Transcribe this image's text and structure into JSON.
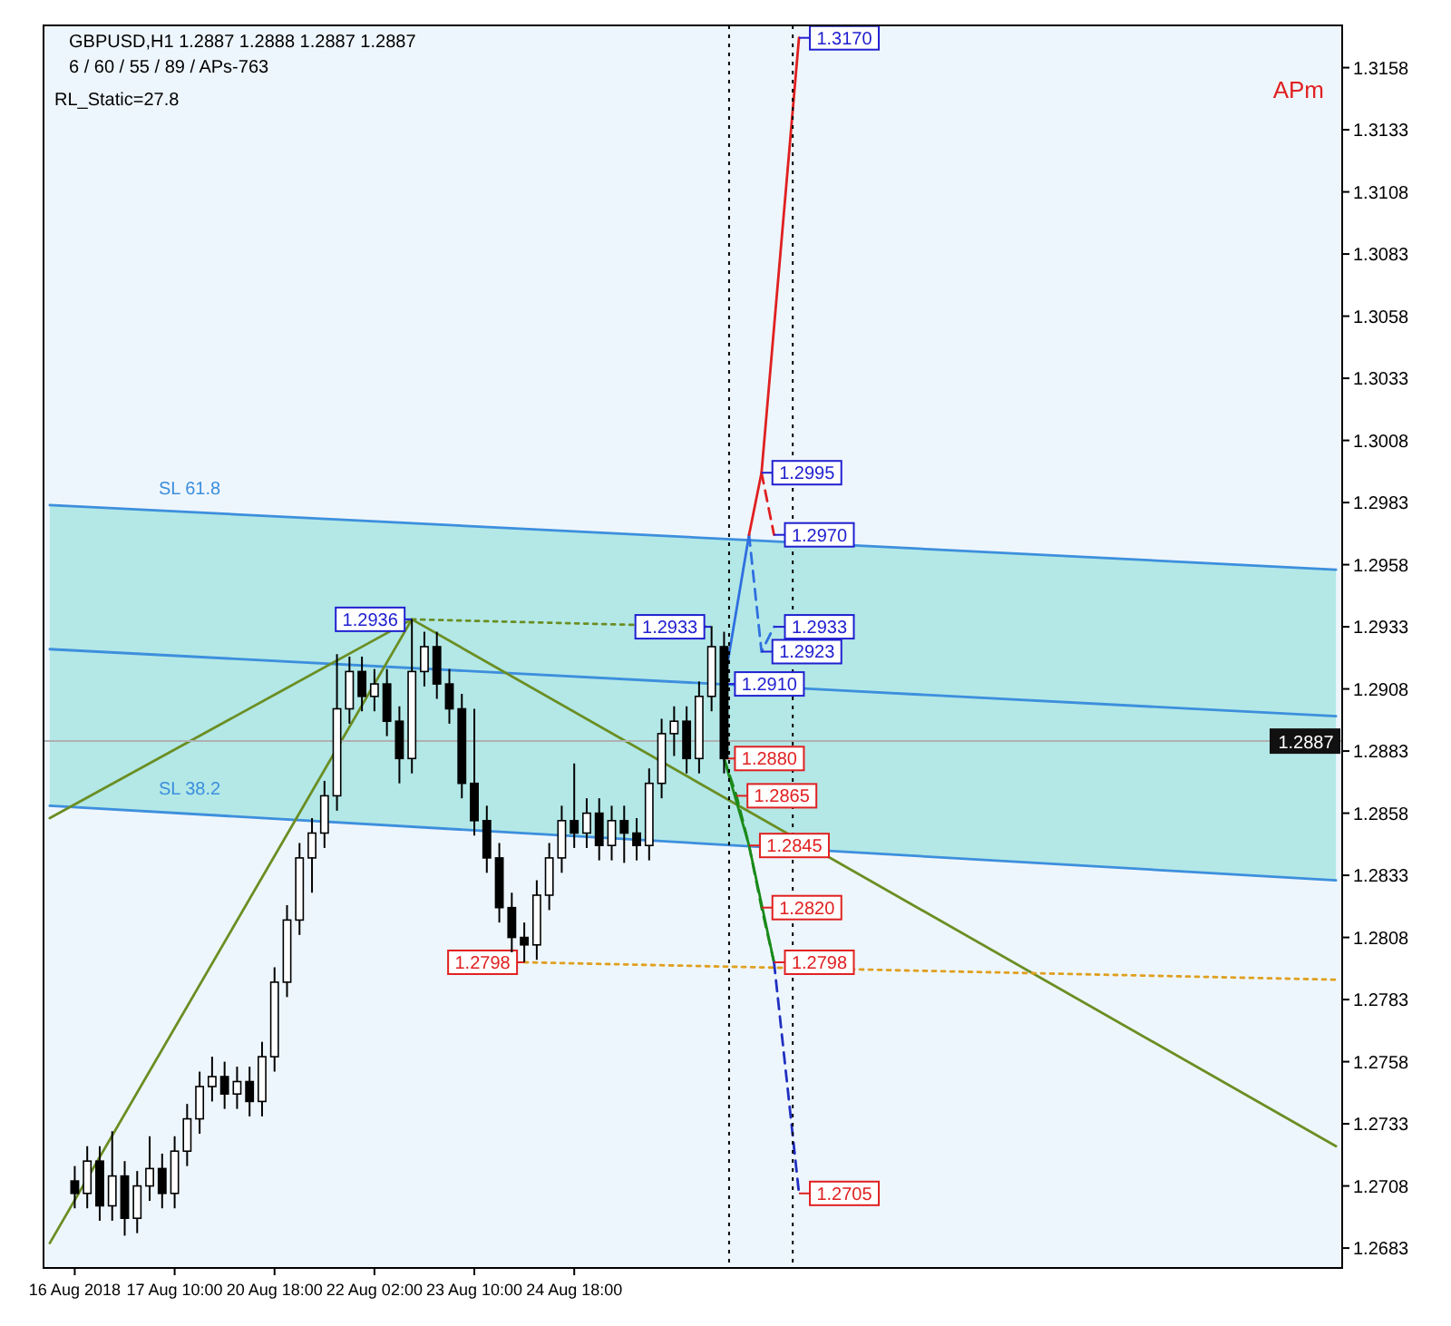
{
  "chart_data": {
    "type": "candlestick",
    "title": "GBPUSD,H1  1.2887 1.2888 1.2887 1.2887",
    "subtitle": "6 / 60 / 55 / 89 / APs-763",
    "categories": [
      null,
      null,
      "16 Aug 2018",
      null,
      null,
      null,
      null,
      null,
      null,
      null,
      "17 Aug 10:00",
      null,
      null,
      null,
      null,
      null,
      null,
      null,
      "20 Aug 18:00",
      null,
      null,
      null,
      null,
      null,
      null,
      null,
      "22 Aug 02:00",
      null,
      null,
      null,
      null,
      null,
      null,
      null,
      "23 Aug 10:00",
      null,
      null,
      null,
      null,
      null,
      null,
      null,
      "24 Aug 18:00",
      null,
      null,
      null,
      null,
      null,
      null,
      null,
      null,
      null,
      null,
      null,
      null,
      null,
      null,
      null,
      null,
      null,
      null,
      null,
      null,
      null,
      null,
      null,
      null,
      null,
      null,
      null,
      null,
      null,
      null,
      null,
      null,
      null,
      null,
      null,
      null,
      null,
      null,
      null,
      null,
      null,
      null,
      null,
      null,
      null,
      null,
      null,
      null,
      null,
      null,
      null,
      null,
      null,
      null,
      null,
      null,
      null,
      null,
      null,
      null,
      null
    ],
    "ohlc": [
      null,
      null,
      [
        1.271,
        1.2716,
        1.2699,
        1.2705
      ],
      [
        1.2705,
        1.2724,
        1.2699,
        1.2718
      ],
      [
        1.2718,
        1.2724,
        1.2694,
        1.27
      ],
      [
        1.27,
        1.273,
        1.2694,
        1.2712
      ],
      [
        1.2712,
        1.2718,
        1.2688,
        1.2695
      ],
      [
        1.2695,
        1.2714,
        1.2689,
        1.2708
      ],
      [
        1.2708,
        1.2728,
        1.2702,
        1.2715
      ],
      [
        1.2715,
        1.2721,
        1.2699,
        1.2705
      ],
      [
        1.2705,
        1.2728,
        1.2699,
        1.2722
      ],
      [
        1.2722,
        1.2741,
        1.2716,
        1.2735
      ],
      [
        1.2735,
        1.2754,
        1.2729,
        1.2748
      ],
      [
        1.2748,
        1.276,
        1.2742,
        1.2752
      ],
      [
        1.2752,
        1.2758,
        1.2739,
        1.2745
      ],
      [
        1.2745,
        1.2756,
        1.2739,
        1.275
      ],
      [
        1.275,
        1.2756,
        1.2736,
        1.2742
      ],
      [
        1.2742,
        1.2766,
        1.2736,
        1.276
      ],
      [
        1.276,
        1.2796,
        1.2754,
        1.279
      ],
      [
        1.279,
        1.2821,
        1.2784,
        1.2815
      ],
      [
        1.2815,
        1.2846,
        1.2809,
        1.284
      ],
      [
        1.284,
        1.2856,
        1.2826,
        1.285
      ],
      [
        1.285,
        1.2871,
        1.2844,
        1.2865
      ],
      [
        1.2865,
        1.2922,
        1.2859,
        1.29
      ],
      [
        1.29,
        1.2921,
        1.2894,
        1.2915
      ],
      [
        1.2915,
        1.2921,
        1.2899,
        1.2905
      ],
      [
        1.2905,
        1.2916,
        1.2899,
        1.291
      ],
      [
        1.291,
        1.2916,
        1.2889,
        1.2895
      ],
      [
        1.2895,
        1.2901,
        1.287,
        1.288
      ],
      [
        1.288,
        1.2936,
        1.2874,
        1.2915
      ],
      [
        1.2915,
        1.2931,
        1.2909,
        1.2925
      ],
      [
        1.2925,
        1.2931,
        1.2904,
        1.291
      ],
      [
        1.291,
        1.2916,
        1.2894,
        1.29
      ],
      [
        1.29,
        1.2906,
        1.2864,
        1.287
      ],
      [
        1.287,
        1.29,
        1.2849,
        1.2855
      ],
      [
        1.2855,
        1.2861,
        1.2834,
        1.284
      ],
      [
        1.284,
        1.2846,
        1.2814,
        1.282
      ],
      [
        1.282,
        1.2826,
        1.2802,
        1.2808
      ],
      [
        1.2808,
        1.2814,
        1.2798,
        1.2805
      ],
      [
        1.2805,
        1.2831,
        1.2799,
        1.2825
      ],
      [
        1.2825,
        1.2846,
        1.2819,
        1.284
      ],
      [
        1.284,
        1.2861,
        1.2834,
        1.2855
      ],
      [
        1.2855,
        1.2878,
        1.2844,
        1.285
      ],
      [
        1.285,
        1.2864,
        1.2844,
        1.2858
      ],
      [
        1.2858,
        1.2864,
        1.2839,
        1.2845
      ],
      [
        1.2845,
        1.2861,
        1.2839,
        1.2855
      ],
      [
        1.2855,
        1.2861,
        1.2838,
        1.285
      ],
      [
        1.285,
        1.2856,
        1.2839,
        1.2845
      ],
      [
        1.2845,
        1.2876,
        1.2839,
        1.287
      ],
      [
        1.287,
        1.2896,
        1.2864,
        1.289
      ],
      [
        1.289,
        1.2901,
        1.2881,
        1.2895
      ],
      [
        1.2895,
        1.2901,
        1.2874,
        1.288
      ],
      [
        1.288,
        1.2911,
        1.2874,
        1.2905
      ],
      [
        1.2905,
        1.2933,
        1.2899,
        1.2925
      ],
      [
        1.2925,
        1.2931,
        1.2874,
        1.288
      ],
      null,
      null,
      null,
      null,
      null,
      null,
      null,
      null,
      null,
      null,
      null,
      null,
      null,
      null,
      null,
      null,
      null,
      null,
      null,
      null,
      null,
      null,
      null,
      null,
      null,
      null,
      null,
      null,
      null,
      null,
      null,
      null,
      null,
      null,
      null,
      null,
      null,
      null,
      null,
      null,
      null,
      null,
      null,
      null,
      null,
      null,
      null,
      null,
      null
    ],
    "series": [
      {
        "type": "line",
        "color": "#3d8fdd",
        "values": [
          1.2924,
          null,
          null,
          null,
          null,
          null,
          null,
          null,
          null,
          null,
          null,
          null,
          null,
          null,
          null,
          null,
          null,
          null,
          null,
          null,
          null,
          null,
          null,
          null,
          null,
          null,
          null,
          null,
          null,
          null,
          null,
          null,
          null,
          null,
          null,
          null,
          null,
          null,
          null,
          null,
          null,
          null,
          null,
          null,
          null,
          null,
          null,
          null,
          null,
          null,
          null,
          null,
          null,
          null,
          null,
          null,
          null,
          null,
          null,
          null,
          null,
          null,
          null,
          null,
          null,
          null,
          null,
          null,
          null,
          null,
          null,
          null,
          null,
          null,
          null,
          null,
          null,
          null,
          null,
          null,
          null,
          null,
          null,
          null,
          null,
          null,
          null,
          null,
          null,
          null,
          null,
          null,
          null,
          null,
          null,
          null,
          null,
          null,
          null,
          null,
          null,
          null,
          null,
          1.2897
        ],
        "lower": [
          1.2861,
          null,
          null,
          null,
          null,
          null,
          null,
          null,
          null,
          null,
          null,
          null,
          null,
          null,
          null,
          null,
          null,
          null,
          null,
          null,
          null,
          null,
          null,
          null,
          null,
          null,
          null,
          null,
          null,
          null,
          null,
          null,
          null,
          null,
          null,
          null,
          null,
          null,
          null,
          null,
          null,
          null,
          null,
          null,
          null,
          null,
          null,
          null,
          null,
          null,
          null,
          null,
          null,
          null,
          null,
          null,
          null,
          null,
          null,
          null,
          null,
          null,
          null,
          null,
          null,
          null,
          null,
          null,
          null,
          null,
          null,
          null,
          null,
          null,
          null,
          null,
          null,
          null,
          null,
          null,
          null,
          null,
          null,
          null,
          null,
          null,
          null,
          null,
          null,
          null,
          null,
          null,
          null,
          null,
          null,
          null,
          null,
          null,
          null,
          null,
          null,
          null,
          null,
          1.2831
        ],
        "upper": [
          1.2982,
          null,
          null,
          null,
          null,
          null,
          null,
          null,
          null,
          null,
          null,
          null,
          null,
          null,
          null,
          null,
          null,
          null,
          null,
          null,
          null,
          null,
          null,
          null,
          null,
          null,
          null,
          null,
          null,
          null,
          null,
          null,
          null,
          null,
          null,
          null,
          null,
          null,
          null,
          null,
          null,
          null,
          null,
          null,
          null,
          null,
          null,
          null,
          null,
          null,
          null,
          null,
          null,
          null,
          null,
          null,
          null,
          null,
          null,
          null,
          null,
          null,
          null,
          null,
          null,
          null,
          null,
          null,
          null,
          null,
          null,
          null,
          null,
          null,
          null,
          null,
          null,
          null,
          null,
          null,
          null,
          null,
          null,
          null,
          null,
          null,
          null,
          null,
          null,
          null,
          null,
          null,
          null,
          null,
          null,
          null,
          null,
          null,
          null,
          null,
          null,
          null,
          null,
          1.2956
        ]
      },
      {
        "type": "line",
        "name": "SL 61.8",
        "color": "#3d8fdd",
        "values": [
          1.2982,
          null,
          null,
          null,
          null,
          null,
          null,
          null,
          null,
          null,
          null,
          null,
          null,
          null,
          null,
          null,
          null,
          null,
          null,
          null,
          null,
          null,
          null,
          null,
          null,
          null,
          null,
          null,
          null,
          null,
          null,
          null,
          null,
          null,
          null,
          null,
          null,
          null,
          null,
          null,
          null,
          null,
          null,
          null,
          null,
          null,
          null,
          null,
          null,
          null,
          null,
          null,
          null,
          null,
          null,
          null,
          null,
          null,
          null,
          null,
          null,
          null,
          null,
          null,
          null,
          null,
          null,
          null,
          null,
          null,
          null,
          null,
          null,
          null,
          null,
          null,
          null,
          null,
          null,
          null,
          null,
          null,
          null,
          null,
          null,
          null,
          null,
          null,
          null,
          null,
          null,
          null,
          null,
          null,
          null,
          null,
          null,
          null,
          null,
          null,
          null,
          null,
          null,
          1.2956
        ]
      },
      {
        "type": "line",
        "name": "SL 38.2",
        "color": "#3d8fdd",
        "values": [
          1.2861,
          null,
          null,
          null,
          null,
          null,
          null,
          null,
          null,
          null,
          null,
          null,
          null,
          null,
          null,
          null,
          null,
          null,
          null,
          null,
          null,
          null,
          null,
          null,
          null,
          null,
          null,
          null,
          null,
          null,
          null,
          null,
          null,
          null,
          null,
          null,
          null,
          null,
          null,
          null,
          null,
          null,
          null,
          null,
          null,
          null,
          null,
          null,
          null,
          null,
          null,
          null,
          null,
          null,
          null,
          null,
          null,
          null,
          null,
          null,
          null,
          null,
          null,
          null,
          null,
          null,
          null,
          null,
          null,
          null,
          null,
          null,
          null,
          null,
          null,
          null,
          null,
          null,
          null,
          null,
          null,
          null,
          null,
          null,
          null,
          null,
          null,
          null,
          null,
          null,
          null,
          null,
          null,
          null,
          null,
          null,
          null,
          null,
          null,
          null,
          null,
          null,
          null,
          1.2831
        ]
      },
      {
        "type": "line",
        "color": "#6b8e23",
        "values": [
          1.2856,
          null,
          null,
          null,
          null,
          null,
          null,
          null,
          null,
          null,
          null,
          null,
          null,
          null,
          null,
          null,
          null,
          null,
          null,
          null,
          null,
          null,
          null,
          null,
          null,
          null,
          null,
          null,
          null,
          1.2936,
          null,
          null,
          null,
          null,
          null,
          null,
          null,
          null,
          null,
          null,
          null,
          null,
          null,
          null,
          null,
          null,
          null,
          null,
          null,
          null,
          null,
          null,
          null,
          null,
          null,
          null,
          null,
          null,
          null,
          null,
          null,
          null,
          null,
          null,
          null,
          null,
          null,
          null,
          null,
          null,
          null,
          null,
          null,
          null,
          null,
          null,
          null,
          null,
          null,
          null,
          null,
          null,
          null,
          null,
          null,
          null,
          null,
          null,
          null,
          null,
          null,
          null,
          null,
          null,
          null,
          null,
          null,
          null,
          null,
          null,
          null,
          null,
          null,
          null
        ]
      },
      {
        "type": "line",
        "color": "#6b8e23",
        "values": [
          1.2685,
          null,
          null,
          null,
          null,
          null,
          null,
          null,
          null,
          null,
          null,
          null,
          null,
          null,
          null,
          null,
          null,
          null,
          null,
          null,
          null,
          null,
          null,
          null,
          null,
          null,
          null,
          null,
          null,
          1.2936,
          null,
          null,
          null,
          null,
          null,
          null,
          null,
          null,
          null,
          null,
          null,
          null,
          null,
          null,
          null,
          null,
          null,
          null,
          null,
          null,
          null,
          null,
          null,
          null,
          null,
          null,
          null,
          null,
          null,
          null,
          null,
          null,
          null,
          null,
          null,
          null,
          null,
          null,
          null,
          null,
          null,
          null,
          null,
          null,
          null,
          null,
          null,
          null,
          null,
          null,
          null,
          null,
          null,
          null,
          null,
          null,
          null,
          null,
          null,
          null,
          null,
          null,
          null,
          null,
          null,
          null,
          null,
          null,
          null,
          null,
          null,
          null,
          null,
          null
        ]
      },
      {
        "type": "line",
        "color": "#6b8e23",
        "values": [
          null,
          null,
          null,
          null,
          null,
          null,
          null,
          null,
          null,
          null,
          null,
          null,
          null,
          null,
          null,
          null,
          null,
          null,
          null,
          null,
          null,
          null,
          null,
          null,
          null,
          null,
          null,
          null,
          null,
          1.2936,
          null,
          null,
          null,
          null,
          null,
          null,
          null,
          null,
          null,
          null,
          null,
          null,
          null,
          null,
          null,
          null,
          null,
          null,
          null,
          null,
          null,
          null,
          null,
          null,
          null,
          null,
          null,
          null,
          null,
          null,
          null,
          null,
          null,
          null,
          null,
          null,
          null,
          null,
          null,
          null,
          null,
          null,
          null,
          null,
          null,
          null,
          null,
          null,
          null,
          null,
          null,
          null,
          null,
          null,
          null,
          null,
          null,
          null,
          null,
          null,
          null,
          null,
          null,
          null,
          null,
          null,
          null,
          null,
          null,
          null,
          null,
          null,
          null,
          1.2724
        ]
      },
      {
        "type": "line",
        "color": "#6b8e23",
        "line_style": "dotted",
        "values": [
          null,
          null,
          null,
          null,
          null,
          null,
          null,
          null,
          null,
          null,
          null,
          null,
          null,
          null,
          null,
          null,
          null,
          null,
          null,
          null,
          null,
          null,
          null,
          null,
          null,
          null,
          null,
          null,
          null,
          1.2936,
          null,
          null,
          null,
          null,
          null,
          null,
          null,
          null,
          null,
          null,
          null,
          null,
          null,
          null,
          null,
          null,
          null,
          null,
          null,
          null,
          null,
          null,
          null,
          1.2933,
          null,
          null,
          null,
          null,
          null,
          null,
          null,
          null,
          null,
          null,
          null,
          null,
          null,
          null,
          null,
          null,
          null,
          null,
          null,
          null,
          null,
          null,
          null,
          null,
          null,
          null,
          null,
          null,
          null,
          null,
          null,
          null,
          null,
          null,
          null,
          null,
          null,
          null,
          null,
          null,
          null,
          null,
          null,
          null,
          null,
          null,
          null,
          null,
          null,
          null
        ]
      },
      {
        "type": "line",
        "color": "#e0a020",
        "line_style": "dotted",
        "values": [
          null,
          null,
          null,
          null,
          null,
          null,
          null,
          null,
          null,
          null,
          null,
          null,
          null,
          null,
          null,
          null,
          null,
          null,
          null,
          null,
          null,
          null,
          null,
          null,
          null,
          null,
          null,
          null,
          null,
          null,
          null,
          null,
          null,
          null,
          null,
          null,
          null,
          null,
          1.2798,
          null,
          null,
          null,
          null,
          null,
          null,
          null,
          null,
          null,
          null,
          null,
          null,
          null,
          null,
          null,
          null,
          null,
          null,
          null,
          null,
          null,
          null,
          null,
          null,
          null,
          null,
          null,
          null,
          null,
          null,
          null,
          null,
          null,
          null,
          null,
          null,
          null,
          null,
          null,
          null,
          null,
          null,
          null,
          null,
          null,
          null,
          null,
          null,
          null,
          null,
          null,
          null,
          null,
          null,
          null,
          null,
          null,
          null,
          null,
          null,
          null,
          null,
          null,
          null,
          1.2791
        ]
      },
      {
        "type": "line",
        "color": "#2f6fe0",
        "values": [
          null,
          null,
          null,
          null,
          null,
          null,
          null,
          null,
          null,
          null,
          null,
          null,
          null,
          null,
          null,
          null,
          null,
          null,
          null,
          null,
          null,
          null,
          null,
          null,
          null,
          null,
          null,
          null,
          null,
          null,
          null,
          null,
          null,
          null,
          null,
          null,
          null,
          null,
          null,
          null,
          null,
          null,
          null,
          null,
          null,
          null,
          null,
          null,
          null,
          null,
          null,
          null,
          null,
          null,
          1.291,
          null,
          1.297,
          null,
          null,
          null,
          null,
          null,
          null,
          null,
          null,
          null,
          null,
          null,
          null,
          null,
          null,
          null,
          null,
          null,
          null,
          null,
          null,
          null,
          null,
          null,
          null,
          null,
          null,
          null,
          null,
          null,
          null,
          null,
          null,
          null,
          null,
          null,
          null,
          null,
          null,
          null,
          null,
          null,
          null,
          null,
          null,
          null,
          null,
          null
        ]
      },
      {
        "type": "line",
        "color": "#2f6fe0",
        "line_style": "dashed",
        "values": [
          null,
          null,
          null,
          null,
          null,
          null,
          null,
          null,
          null,
          null,
          null,
          null,
          null,
          null,
          null,
          null,
          null,
          null,
          null,
          null,
          null,
          null,
          null,
          null,
          null,
          null,
          null,
          null,
          null,
          null,
          null,
          null,
          null,
          null,
          null,
          null,
          null,
          null,
          null,
          null,
          null,
          null,
          null,
          null,
          null,
          null,
          null,
          null,
          null,
          null,
          null,
          null,
          null,
          null,
          null,
          null,
          1.297,
          1.2923,
          1.2933,
          null,
          null,
          null,
          null,
          null,
          null,
          null,
          null,
          null,
          null,
          null,
          null,
          null,
          null,
          null,
          null,
          null,
          null,
          null,
          null,
          null,
          null,
          null,
          null,
          null,
          null,
          null,
          null,
          null,
          null,
          null,
          null,
          null,
          null,
          null,
          null,
          null,
          null,
          null,
          null,
          null,
          null,
          null,
          null,
          null
        ]
      },
      {
        "type": "line",
        "color": "#e02020",
        "values": [
          null,
          null,
          null,
          null,
          null,
          null,
          null,
          null,
          null,
          null,
          null,
          null,
          null,
          null,
          null,
          null,
          null,
          null,
          null,
          null,
          null,
          null,
          null,
          null,
          null,
          null,
          null,
          null,
          null,
          null,
          null,
          null,
          null,
          null,
          null,
          null,
          null,
          null,
          null,
          null,
          null,
          null,
          null,
          null,
          null,
          null,
          null,
          null,
          null,
          null,
          null,
          null,
          null,
          null,
          null,
          null,
          1.297,
          1.2995,
          null,
          null,
          1.317,
          null,
          null,
          null,
          null,
          null,
          null,
          null,
          null,
          null,
          null,
          null,
          null,
          null,
          null,
          null,
          null,
          null,
          null,
          null,
          null,
          null,
          null,
          null,
          null,
          null,
          null,
          null,
          null,
          null,
          null,
          null,
          null,
          null,
          null,
          null,
          null,
          null,
          null,
          null,
          null,
          null,
          null,
          null
        ]
      },
      {
        "type": "line",
        "color": "#e02020",
        "line_style": "dashed",
        "values": [
          null,
          null,
          null,
          null,
          null,
          null,
          null,
          null,
          null,
          null,
          null,
          null,
          null,
          null,
          null,
          null,
          null,
          null,
          null,
          null,
          null,
          null,
          null,
          null,
          null,
          null,
          null,
          null,
          null,
          null,
          null,
          null,
          null,
          null,
          null,
          null,
          null,
          null,
          null,
          null,
          null,
          null,
          null,
          null,
          null,
          null,
          null,
          null,
          null,
          null,
          null,
          null,
          null,
          null,
          null,
          null,
          null,
          1.2995,
          1.297,
          null,
          null,
          null,
          null,
          null,
          null,
          null,
          null,
          null,
          null,
          null,
          null,
          null,
          null,
          null,
          null,
          null,
          null,
          null,
          null,
          null,
          null,
          null,
          null,
          null,
          null,
          null,
          null,
          null,
          null,
          null,
          null,
          null,
          null,
          null,
          null,
          null,
          null,
          null,
          null,
          null,
          null,
          null,
          null,
          null
        ]
      },
      {
        "type": "line",
        "color": "#1a8a1a",
        "values": [
          null,
          null,
          null,
          null,
          null,
          null,
          null,
          null,
          null,
          null,
          null,
          null,
          null,
          null,
          null,
          null,
          null,
          null,
          null,
          null,
          null,
          null,
          null,
          null,
          null,
          null,
          null,
          null,
          null,
          null,
          null,
          null,
          null,
          null,
          null,
          null,
          null,
          null,
          null,
          null,
          null,
          null,
          null,
          null,
          null,
          null,
          null,
          null,
          null,
          null,
          null,
          null,
          null,
          null,
          1.288,
          null,
          1.2845,
          null,
          1.2798,
          null,
          null,
          null,
          null,
          null,
          null,
          null,
          null,
          null,
          null,
          null,
          null,
          null,
          null,
          null,
          null,
          null,
          null,
          null,
          null,
          null,
          null,
          null,
          null,
          null,
          null,
          null,
          null,
          null,
          null,
          null,
          null,
          null,
          null,
          null,
          null,
          null,
          null,
          null,
          null,
          null,
          null,
          null,
          null,
          null
        ]
      },
      {
        "type": "line",
        "color": "#1a8a1a",
        "line_style": "dashed",
        "values": [
          null,
          null,
          null,
          null,
          null,
          null,
          null,
          null,
          null,
          null,
          null,
          null,
          null,
          null,
          null,
          null,
          null,
          null,
          null,
          null,
          null,
          null,
          null,
          null,
          null,
          null,
          null,
          null,
          null,
          null,
          null,
          null,
          null,
          null,
          null,
          null,
          null,
          null,
          null,
          null,
          null,
          null,
          null,
          null,
          null,
          null,
          null,
          null,
          null,
          null,
          null,
          null,
          null,
          null,
          1.288,
          1.2865,
          1.2845,
          1.282,
          1.2798,
          null,
          null,
          null,
          null,
          null,
          null,
          null,
          null,
          null,
          null,
          null,
          null,
          null,
          null,
          null,
          null,
          null,
          null,
          null,
          null,
          null,
          null,
          null,
          null,
          null,
          null,
          null,
          null,
          null,
          null,
          null,
          null,
          null,
          null,
          null,
          null,
          null,
          null,
          null,
          null,
          null,
          null,
          null,
          null,
          null
        ]
      },
      {
        "type": "line",
        "color": "#2030c0",
        "line_style": "dashed",
        "values": [
          null,
          null,
          null,
          null,
          null,
          null,
          null,
          null,
          null,
          null,
          null,
          null,
          null,
          null,
          null,
          null,
          null,
          null,
          null,
          null,
          null,
          null,
          null,
          null,
          null,
          null,
          null,
          null,
          null,
          null,
          null,
          null,
          null,
          null,
          null,
          null,
          null,
          null,
          null,
          null,
          null,
          null,
          null,
          null,
          null,
          null,
          null,
          null,
          null,
          null,
          null,
          null,
          null,
          null,
          null,
          null,
          null,
          null,
          1.2798,
          null,
          1.2705,
          null,
          null,
          null,
          null,
          null,
          null,
          null,
          null,
          null,
          null,
          null,
          null,
          null,
          null,
          null,
          null,
          null,
          null,
          null,
          null,
          null,
          null,
          null,
          null,
          null,
          null,
          null,
          null,
          null,
          null,
          null,
          null,
          null,
          null,
          null,
          null,
          null,
          null,
          null,
          null,
          null,
          null,
          null
        ]
      }
    ],
    "ylim": [
      1.2675,
      1.3175
    ],
    "yticks": [
      1.2683,
      1.2708,
      1.2733,
      1.2758,
      1.2783,
      1.2808,
      1.2833,
      1.2858,
      1.2883,
      1.2908,
      1.2933,
      1.2958,
      1.2983,
      1.3008,
      1.3033,
      1.3058,
      1.3083,
      1.3108,
      1.3133,
      1.3158
    ],
    "ref_lines": [
      {
        "axis": "y",
        "value": 1.2887,
        "label": "1.2887",
        "color": "#b0b0b0"
      }
    ],
    "annotations": [
      "RL_Static=27.8",
      "APm",
      {
        "text": "1.2936",
        "y": 1.2936
      },
      {
        "text": "1.2933",
        "y": 1.2933
      },
      {
        "text": "1.2798",
        "y": 1.2798
      },
      {
        "text": "1.3170",
        "y": 1.317
      },
      {
        "text": "1.2995",
        "y": 1.2995
      },
      {
        "text": "1.2970",
        "y": 1.297
      },
      {
        "text": "1.2933",
        "y": 1.2933
      },
      {
        "text": "1.2923",
        "y": 1.2923
      },
      {
        "text": "1.2910",
        "y": 1.291
      },
      {
        "text": "1.2880",
        "y": 1.288
      },
      {
        "text": "1.2865",
        "y": 1.2865
      },
      {
        "text": "1.2845",
        "y": 1.2845
      },
      {
        "text": "1.2820",
        "y": 1.282
      },
      {
        "text": "1.2798",
        "y": 1.2798
      },
      {
        "text": "1.2705",
        "y": 1.2705
      }
    ],
    "marker": "none",
    "grid": false
  }
}
